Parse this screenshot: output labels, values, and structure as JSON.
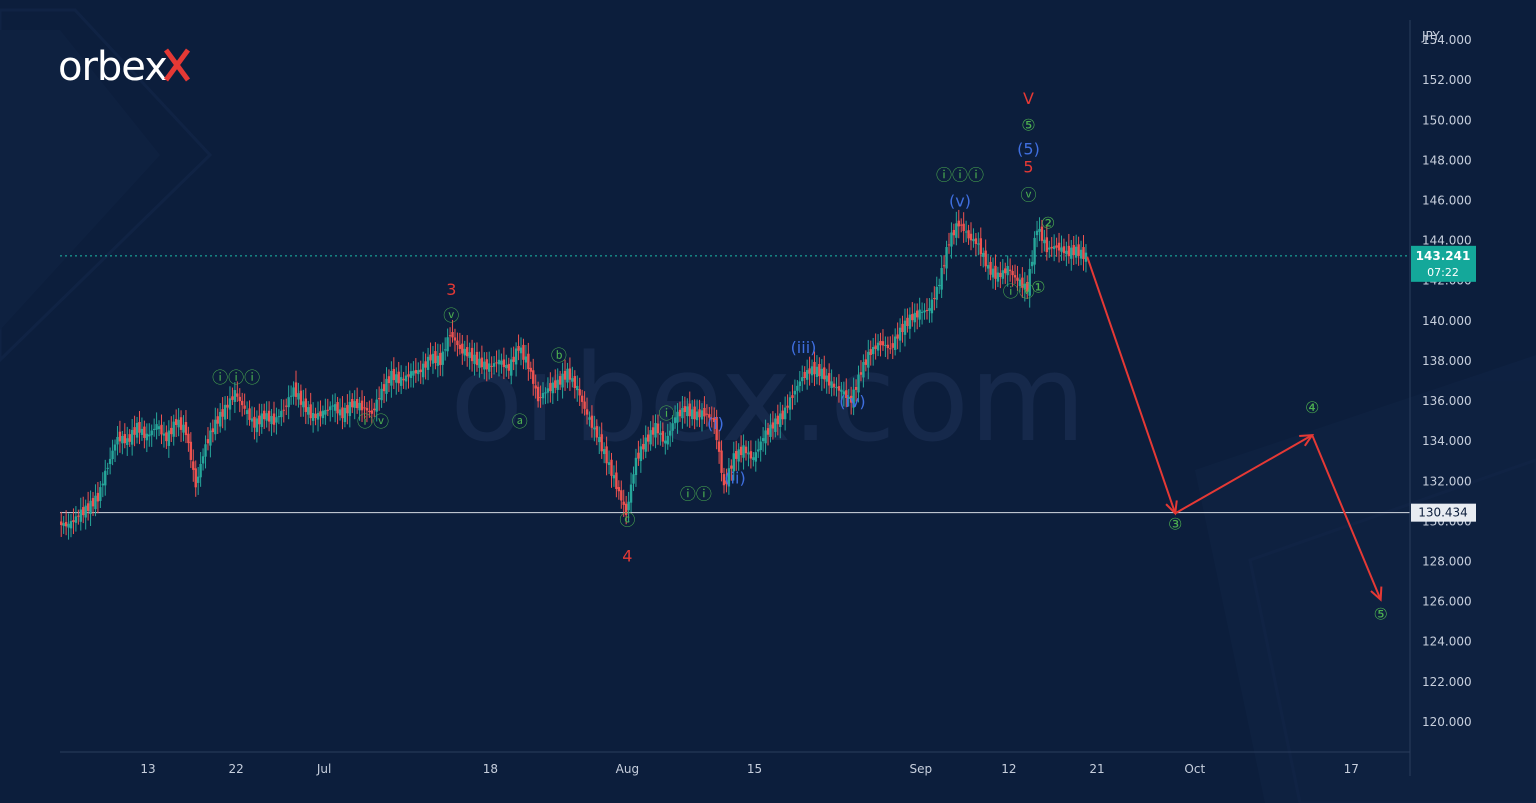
{
  "brand": {
    "name": "orbex",
    "watermark": "orbex.com"
  },
  "chart_data": {
    "type": "line",
    "ylabel": "JPY",
    "ylim": [
      118.5,
      155.0
    ],
    "y_ticks": [
      154,
      152,
      150,
      148,
      146,
      144,
      142,
      140,
      138,
      136,
      134,
      132,
      130,
      128,
      126,
      124,
      122,
      120
    ],
    "y_tick_labels": [
      "154.000",
      "152.000",
      "150.000",
      "148.000",
      "146.000",
      "144.000",
      "142.000",
      "140.000",
      "138.000",
      "136.000",
      "134.000",
      "132.000",
      "130.000",
      "128.000",
      "126.000",
      "124.000",
      "122.000",
      "120.000"
    ],
    "x_ticks": [
      {
        "label": "13",
        "x": 13
      },
      {
        "label": "22",
        "x": 22
      },
      {
        "label": "Jul",
        "x": 31
      },
      {
        "label": "18",
        "x": 48
      },
      {
        "label": "Aug",
        "x": 62
      },
      {
        "label": "15",
        "x": 75
      },
      {
        "label": "Sep",
        "x": 92
      },
      {
        "label": "12",
        "x": 101
      },
      {
        "label": "21",
        "x": 110
      },
      {
        "label": "Oct",
        "x": 120
      },
      {
        "label": "17",
        "x": 136
      }
    ],
    "xlim": [
      4,
      142
    ],
    "price_series": [
      [
        4,
        129.9
      ],
      [
        5,
        129.8
      ],
      [
        6,
        130.3
      ],
      [
        7,
        130.7
      ],
      [
        8,
        131.2
      ],
      [
        9,
        132.8
      ],
      [
        10,
        134.2
      ],
      [
        11,
        134.0
      ],
      [
        12,
        134.7
      ],
      [
        13,
        134.2
      ],
      [
        14,
        134.8
      ],
      [
        15,
        134.1
      ],
      [
        16,
        135.0
      ],
      [
        17,
        134.5
      ],
      [
        18,
        131.8
      ],
      [
        19,
        133.8
      ],
      [
        20,
        134.9
      ],
      [
        21,
        135.6
      ],
      [
        22,
        136.4
      ],
      [
        23,
        135.6
      ],
      [
        24,
        134.8
      ],
      [
        25,
        135.3
      ],
      [
        26,
        135.0
      ],
      [
        27,
        135.6
      ],
      [
        28,
        136.6
      ],
      [
        29,
        135.8
      ],
      [
        30,
        135.2
      ],
      [
        31,
        135.4
      ],
      [
        32,
        135.8
      ],
      [
        33,
        135.3
      ],
      [
        34,
        135.9
      ],
      [
        35,
        135.7
      ],
      [
        36,
        135.4
      ],
      [
        37,
        136.5
      ],
      [
        38,
        137.3
      ],
      [
        39,
        137.0
      ],
      [
        40,
        137.4
      ],
      [
        41,
        137.5
      ],
      [
        42,
        138.2
      ],
      [
        43,
        138.0
      ],
      [
        44,
        139.4
      ],
      [
        45,
        138.6
      ],
      [
        46,
        138.3
      ],
      [
        47,
        137.9
      ],
      [
        48,
        137.7
      ],
      [
        49,
        138.0
      ],
      [
        50,
        137.6
      ],
      [
        51,
        138.7
      ],
      [
        52,
        137.8
      ],
      [
        53,
        136.1
      ],
      [
        54,
        136.6
      ],
      [
        55,
        136.9
      ],
      [
        56,
        137.4
      ],
      [
        57,
        136.6
      ],
      [
        58,
        135.3
      ],
      [
        59,
        134.3
      ],
      [
        60,
        133.1
      ],
      [
        61,
        131.8
      ],
      [
        62,
        130.4
      ],
      [
        63,
        133.1
      ],
      [
        64,
        134.0
      ],
      [
        65,
        134.7
      ],
      [
        66,
        133.9
      ],
      [
        67,
        135.2
      ],
      [
        68,
        135.6
      ],
      [
        69,
        135.3
      ],
      [
        70,
        135.4
      ],
      [
        71,
        135.0
      ],
      [
        72,
        131.7
      ],
      [
        73,
        133.2
      ],
      [
        74,
        133.6
      ],
      [
        75,
        133.1
      ],
      [
        76,
        134.2
      ],
      [
        77,
        134.8
      ],
      [
        78,
        135.3
      ],
      [
        79,
        136.3
      ],
      [
        80,
        137.2
      ],
      [
        81,
        137.6
      ],
      [
        82,
        137.4
      ],
      [
        83,
        136.8
      ],
      [
        84,
        136.5
      ],
      [
        85,
        136.0
      ],
      [
        86,
        137.5
      ],
      [
        87,
        138.5
      ],
      [
        88,
        138.9
      ],
      [
        89,
        138.6
      ],
      [
        90,
        139.5
      ],
      [
        91,
        140.1
      ],
      [
        92,
        140.4
      ],
      [
        93,
        140.6
      ],
      [
        94,
        141.9
      ],
      [
        95,
        144.0
      ],
      [
        96,
        144.9
      ],
      [
        97,
        144.2
      ],
      [
        98,
        143.8
      ],
      [
        99,
        142.6
      ],
      [
        100,
        142.2
      ],
      [
        101,
        142.6
      ],
      [
        102,
        142.0
      ],
      [
        103,
        141.6
      ],
      [
        104,
        144.7
      ],
      [
        105,
        143.6
      ],
      [
        106,
        143.7
      ],
      [
        107,
        143.4
      ],
      [
        108,
        143.5
      ],
      [
        109,
        143.2
      ]
    ],
    "forecast_path": [
      [
        109,
        143.2
      ],
      [
        118,
        130.4
      ],
      [
        132,
        134.3
      ],
      [
        139,
        126.1
      ]
    ],
    "horizontal_lines": [
      {
        "name": "support",
        "value": 130.434,
        "label": "130.434"
      },
      {
        "name": "current-price",
        "value": 143.241,
        "label": "143.241"
      }
    ],
    "current_price": {
      "value": 143.241,
      "label": "143.241",
      "countdown": "07:22"
    },
    "annotations": [
      {
        "text": "ⓘⓘⓘ",
        "x": 22,
        "y": 136.9,
        "color": "#4caf50"
      },
      {
        "text": "ⓥ",
        "x": 44,
        "y": 140.0,
        "color": "#4caf50"
      },
      {
        "text": "3",
        "x": 44,
        "y": 141.3,
        "color": "#e53935"
      },
      {
        "text": "ⓘⓥ",
        "x": 36,
        "y": 134.7,
        "color": "#4caf50"
      },
      {
        "text": "ⓑ",
        "x": 55,
        "y": 138.0,
        "color": "#4caf50"
      },
      {
        "text": "ⓐ",
        "x": 51,
        "y": 134.7,
        "color": "#4caf50"
      },
      {
        "text": "ⓒ",
        "x": 62,
        "y": 129.8,
        "color": "#4caf50"
      },
      {
        "text": "4",
        "x": 62,
        "y": 128.0,
        "color": "#e53935"
      },
      {
        "text": "ⓘ",
        "x": 66,
        "y": 135.1,
        "color": "#4caf50"
      },
      {
        "text": "ⓘⓘ",
        "x": 69,
        "y": 131.1,
        "color": "#4caf50"
      },
      {
        "text": "(i)",
        "x": 71,
        "y": 134.6,
        "color": "#3f6fe0"
      },
      {
        "text": "(ii)",
        "x": 73,
        "y": 131.9,
        "color": "#3f6fe0"
      },
      {
        "text": "(iii)",
        "x": 80,
        "y": 138.4,
        "color": "#3f6fe0"
      },
      {
        "text": "(iv)",
        "x": 85,
        "y": 135.7,
        "color": "#3f6fe0"
      },
      {
        "text": "(v)",
        "x": 96,
        "y": 145.7,
        "color": "#3f6fe0"
      },
      {
        "text": "ⓘⓘⓘ",
        "x": 96,
        "y": 147.0,
        "color": "#4caf50"
      },
      {
        "text": "ⓥ",
        "x": 103,
        "y": 146.0,
        "color": "#4caf50"
      },
      {
        "text": "5",
        "x": 103,
        "y": 147.4,
        "color": "#e53935"
      },
      {
        "text": "(5)",
        "x": 103,
        "y": 148.3,
        "color": "#3f6fe0"
      },
      {
        "text": "⑤",
        "x": 103,
        "y": 149.5,
        "color": "#4caf50"
      },
      {
        "text": "V",
        "x": 103,
        "y": 150.8,
        "color": "#e53935"
      },
      {
        "text": "②",
        "x": 105,
        "y": 144.6,
        "color": "#4caf50"
      },
      {
        "text": "①",
        "x": 104,
        "y": 141.4,
        "color": "#4caf50"
      },
      {
        "text": "ⓘⓥ",
        "x": 102,
        "y": 141.2,
        "color": "#4caf50"
      },
      {
        "text": "③",
        "x": 118,
        "y": 129.6,
        "color": "#4caf50"
      },
      {
        "text": "④",
        "x": 132,
        "y": 135.4,
        "color": "#4caf50"
      },
      {
        "text": "⑤",
        "x": 139,
        "y": 125.1,
        "color": "#4caf50"
      }
    ]
  },
  "colors": {
    "background": "#0c1e3c",
    "grid_line": "#1e3152",
    "up_candle": "#26a69a",
    "down_candle": "#ef5350",
    "price_line": "#1dbda8",
    "forecast": "#e53935",
    "support_line": "#d6dbe3",
    "price_badge": "#14a89a"
  }
}
